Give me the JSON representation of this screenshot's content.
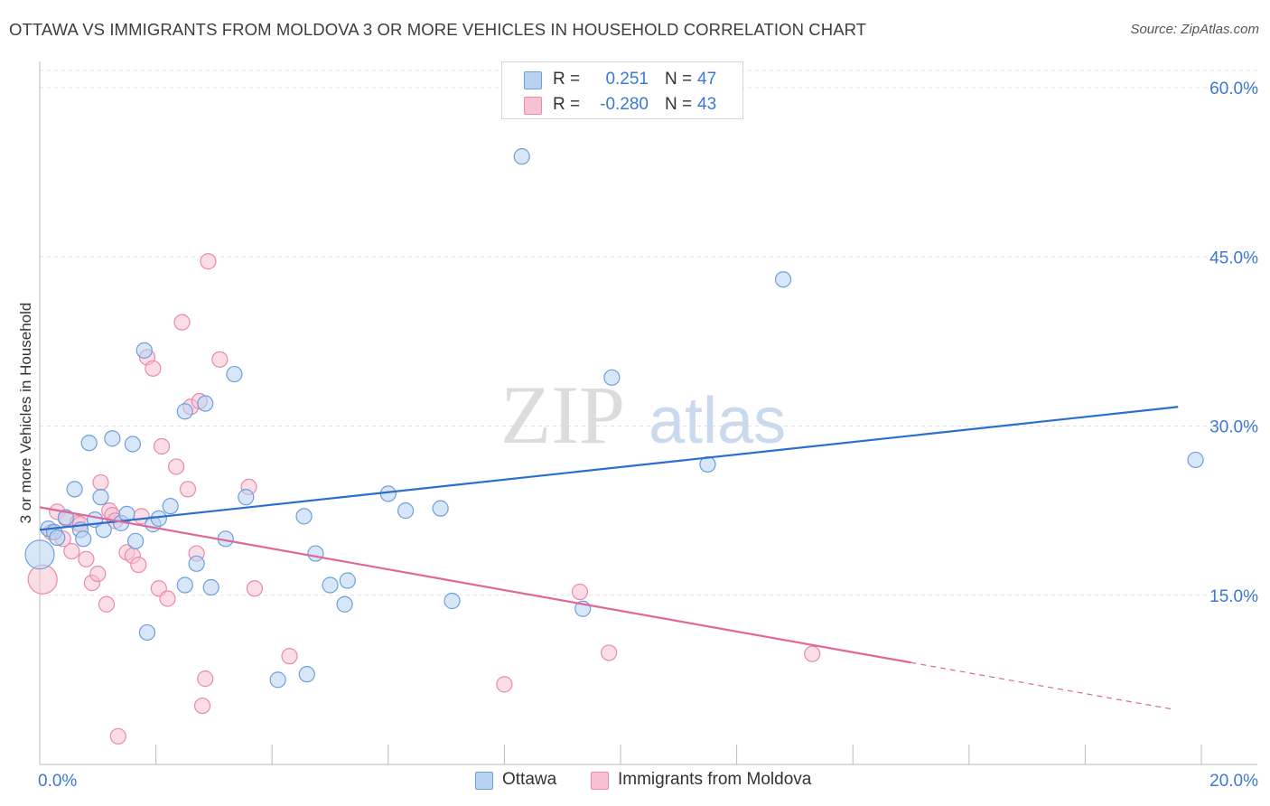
{
  "title": "OTTAWA VS IMMIGRANTS FROM MOLDOVA 3 OR MORE VEHICLES IN HOUSEHOLD CORRELATION CHART",
  "source": "Source: ZipAtlas.com",
  "watermark": {
    "zip": "ZIP",
    "atlas": "atlas"
  },
  "legend_top": {
    "rows": [
      {
        "r_label": "R =",
        "r_value": "0.251",
        "n_label": "N =",
        "n_value": "47"
      },
      {
        "r_label": "R =",
        "r_value": "-0.280",
        "n_label": "N =",
        "n_value": "43"
      }
    ]
  },
  "legend_bottom": {
    "ottawa": "Ottawa",
    "moldova": "Immigrants from Moldova"
  },
  "colors": {
    "ottawa_fill": "#b8d3f2",
    "ottawa_stroke": "#6d9fdc",
    "ottawa_line": "#2a6fd0",
    "moldova_fill": "#f7c1d2",
    "moldova_stroke": "#e98aaa",
    "moldova_line": "#e0679a",
    "axis_label": "#3b78d6",
    "grid": "#e3e3e3"
  },
  "chart_data": {
    "type": "scatter",
    "title": "OTTAWA VS IMMIGRANTS FROM MOLDOVA 3 OR MORE VEHICLES IN HOUSEHOLD CORRELATION CHART",
    "xlabel": "",
    "ylabel": "3 or more Vehicles in Household",
    "xlim": [
      0,
      20
    ],
    "ylim": [
      0,
      60
    ],
    "x_tick_labels": [
      "0.0%",
      "20.0%"
    ],
    "y_ticks": [
      15,
      30,
      45,
      60
    ],
    "y_tick_labels": [
      "15.0%",
      "30.0%",
      "45.0%",
      "60.0%"
    ],
    "grid": true,
    "series": [
      {
        "name": "Ottawa",
        "r": 0.251,
        "n": 47,
        "trend": {
          "x0": 0,
          "y0": 20.8,
          "x1": 19.6,
          "y1": 31.7,
          "dashed_from": null
        },
        "points": [
          [
            0.0,
            18.6
          ],
          [
            0.15,
            20.9
          ],
          [
            0.25,
            20.6
          ],
          [
            0.3,
            20.1
          ],
          [
            0.45,
            21.9
          ],
          [
            0.6,
            24.4
          ],
          [
            0.7,
            20.8
          ],
          [
            0.75,
            20.0
          ],
          [
            0.85,
            28.5
          ],
          [
            0.95,
            21.7
          ],
          [
            1.05,
            23.7
          ],
          [
            1.1,
            20.8
          ],
          [
            1.25,
            28.9
          ],
          [
            1.4,
            21.4
          ],
          [
            1.5,
            22.2
          ],
          [
            1.6,
            28.4
          ],
          [
            1.65,
            19.8
          ],
          [
            1.8,
            36.7
          ],
          [
            1.85,
            11.7
          ],
          [
            1.95,
            21.3
          ],
          [
            2.05,
            21.8
          ],
          [
            2.25,
            22.9
          ],
          [
            2.5,
            31.3
          ],
          [
            2.5,
            15.9
          ],
          [
            2.7,
            17.8
          ],
          [
            2.85,
            32.0
          ],
          [
            2.95,
            15.7
          ],
          [
            3.2,
            20.0
          ],
          [
            3.35,
            34.6
          ],
          [
            3.55,
            23.7
          ],
          [
            4.1,
            7.5
          ],
          [
            4.55,
            22.0
          ],
          [
            4.6,
            8.0
          ],
          [
            4.75,
            18.7
          ],
          [
            5.0,
            15.9
          ],
          [
            5.25,
            14.2
          ],
          [
            5.3,
            16.3
          ],
          [
            6.0,
            24.0
          ],
          [
            6.3,
            22.5
          ],
          [
            6.9,
            22.7
          ],
          [
            7.1,
            14.5
          ],
          [
            8.3,
            53.9
          ],
          [
            9.35,
            13.8
          ],
          [
            9.85,
            34.3
          ],
          [
            11.5,
            26.6
          ],
          [
            12.8,
            43.0
          ],
          [
            19.9,
            27.0
          ]
        ]
      },
      {
        "name": "Immigrants from Moldova",
        "r": -0.28,
        "n": 43,
        "trend": {
          "x0": 0,
          "y0": 22.8,
          "x1": 19.5,
          "y1": 4.9,
          "dashed_from": 15.0
        },
        "points": [
          [
            0.05,
            16.4
          ],
          [
            0.2,
            20.6
          ],
          [
            0.3,
            22.4
          ],
          [
            0.4,
            20.0
          ],
          [
            0.45,
            21.8
          ],
          [
            0.55,
            18.9
          ],
          [
            0.65,
            21.4
          ],
          [
            0.7,
            21.3
          ],
          [
            0.8,
            18.2
          ],
          [
            0.9,
            16.1
          ],
          [
            1.0,
            16.9
          ],
          [
            1.05,
            25.0
          ],
          [
            1.15,
            14.2
          ],
          [
            1.2,
            22.5
          ],
          [
            1.25,
            22.1
          ],
          [
            1.3,
            21.6
          ],
          [
            1.35,
            2.5
          ],
          [
            1.5,
            18.8
          ],
          [
            1.6,
            18.5
          ],
          [
            1.7,
            17.7
          ],
          [
            1.75,
            22.0
          ],
          [
            1.85,
            36.1
          ],
          [
            1.95,
            35.1
          ],
          [
            2.05,
            15.6
          ],
          [
            2.1,
            28.2
          ],
          [
            2.2,
            14.7
          ],
          [
            2.35,
            26.4
          ],
          [
            2.45,
            39.2
          ],
          [
            2.55,
            24.4
          ],
          [
            2.6,
            31.7
          ],
          [
            2.7,
            18.7
          ],
          [
            2.75,
            32.2
          ],
          [
            2.8,
            5.2
          ],
          [
            2.85,
            7.6
          ],
          [
            2.9,
            44.6
          ],
          [
            3.1,
            35.9
          ],
          [
            3.6,
            24.6
          ],
          [
            3.7,
            15.6
          ],
          [
            4.3,
            9.6
          ],
          [
            8.0,
            7.1
          ],
          [
            9.3,
            15.3
          ],
          [
            9.8,
            9.9
          ],
          [
            13.3,
            9.8
          ]
        ]
      }
    ]
  }
}
